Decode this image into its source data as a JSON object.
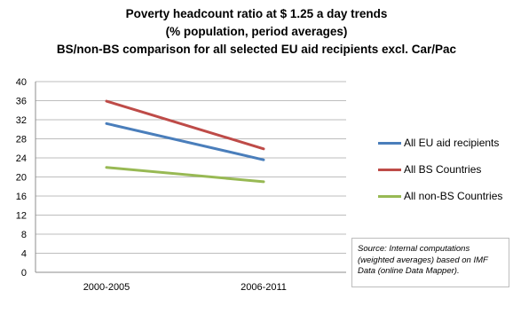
{
  "chart_data": {
    "type": "line",
    "title_lines": [
      "Poverty headcount ratio at $ 1.25 a day trends",
      "(% population, period averages)",
      "BS/non-BS comparison for all selected EU aid recipients excl. Car/Pac"
    ],
    "categories": [
      "2000-2005",
      "2006-2011"
    ],
    "yticks": [
      "0",
      "4",
      "8",
      "12",
      "16",
      "20",
      "24",
      "28",
      "32",
      "36",
      "40"
    ],
    "ylim": [
      0,
      40
    ],
    "grid": true,
    "legend_position": "right",
    "series": [
      {
        "name": "All EU aid recipients",
        "values": [
          31.2,
          23.6
        ],
        "color": "#4a7ebb"
      },
      {
        "name": "All BS Countries",
        "values": [
          35.9,
          25.9
        ],
        "color": "#be4b48"
      },
      {
        "name": "All non-BS Countries",
        "values": [
          22.0,
          19.0
        ],
        "color": "#98b954"
      }
    ],
    "source_note": "Source: Internal computations (weighted averages) based on IMF Data (online  Data Mapper)."
  }
}
